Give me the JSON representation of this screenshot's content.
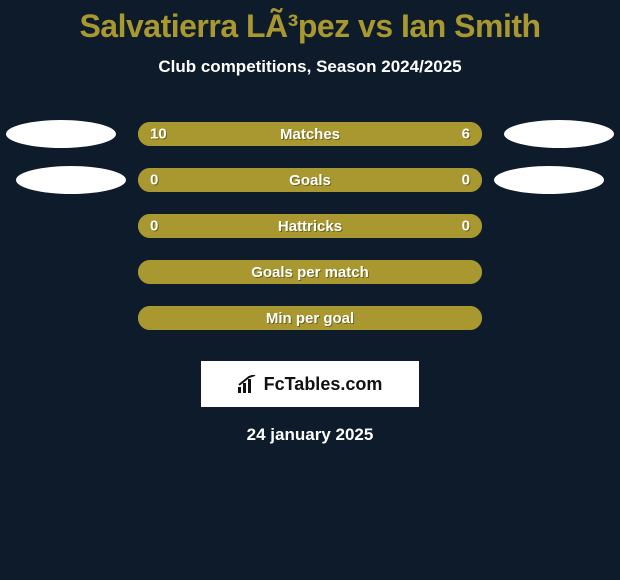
{
  "colors": {
    "background": "#0d1b2a",
    "accent": "#a8982f",
    "pill_fill": "#a8982f",
    "pill_empty": "#888571",
    "ellipse": "#ffffff",
    "text": "#ffffff"
  },
  "title": {
    "player_a": "Salvatierra LÃ³pez",
    "vs": "vs",
    "player_b": "Ian Smith"
  },
  "subtitle": "Club competitions, Season 2024/2025",
  "stats": [
    {
      "label": "Matches",
      "a": "10",
      "b": "6",
      "fill_left_pct": 62,
      "fill_right_pct": 38,
      "show_values": true,
      "ellipse_left": true,
      "ellipse_right": true,
      "ellipse_indent": false
    },
    {
      "label": "Goals",
      "a": "0",
      "b": "0",
      "fill_left_pct": 100,
      "fill_right_pct": 0,
      "show_values": true,
      "ellipse_left": true,
      "ellipse_right": true,
      "ellipse_indent": true
    },
    {
      "label": "Hattricks",
      "a": "0",
      "b": "0",
      "fill_left_pct": 100,
      "fill_right_pct": 0,
      "show_values": true,
      "ellipse_left": false,
      "ellipse_right": false,
      "ellipse_indent": false
    },
    {
      "label": "Goals per match",
      "a": "",
      "b": "",
      "fill_left_pct": 100,
      "fill_right_pct": 0,
      "show_values": false,
      "ellipse_left": false,
      "ellipse_right": false,
      "ellipse_indent": false
    },
    {
      "label": "Min per goal",
      "a": "",
      "b": "",
      "fill_left_pct": 100,
      "fill_right_pct": 0,
      "show_values": false,
      "ellipse_left": false,
      "ellipse_right": false,
      "ellipse_indent": false
    }
  ],
  "logo": {
    "text": "FcTables.com"
  },
  "date": "24 january 2025",
  "fonts": {
    "title_pt": 32,
    "subtitle_pt": 17,
    "stat_label_pt": 15,
    "date_pt": 17
  }
}
